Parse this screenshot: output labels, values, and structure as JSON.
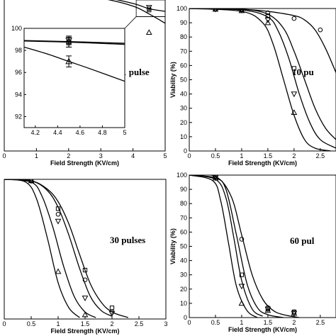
{
  "chart_data": [
    {
      "type": "line",
      "annotation": "1 pulse",
      "xlabel": "Field Strength (KV/cm)",
      "ylabel": "",
      "xlim": [
        0,
        5
      ],
      "ylim": [
        88,
        100
      ],
      "xticks": [
        "0",
        "1",
        "2",
        "3",
        "4",
        "5"
      ],
      "yticks": [],
      "curves": [
        {
          "x": [
            0,
            1,
            2,
            3,
            4,
            4.5,
            5
          ],
          "y": [
            100,
            100,
            99.9,
            99.7,
            99.2,
            98.8,
            98.6
          ]
        },
        {
          "x": [
            0,
            1,
            2,
            3,
            4,
            4.5,
            5
          ],
          "y": [
            100,
            100,
            99.9,
            99.6,
            99.0,
            98.4,
            97.7
          ]
        }
      ],
      "markers": [
        {
          "symbol": "circle",
          "x": [
            0,
            0.5,
            1,
            1.5,
            2,
            4.5
          ],
          "y": [
            100,
            100,
            100,
            100,
            100,
            98.8
          ]
        },
        {
          "symbol": "square",
          "x": [
            0,
            0.5,
            1,
            1.5,
            2,
            4.5
          ],
          "y": [
            100,
            100,
            100,
            100,
            100,
            98.7
          ]
        },
        {
          "symbol": "triangle-down",
          "x": [
            0,
            0.5,
            1,
            1.5,
            2,
            4.5
          ],
          "y": [
            100,
            100,
            100,
            100,
            100,
            98.9
          ]
        },
        {
          "symbol": "triangle-up",
          "x": [
            0,
            0.5,
            1,
            1.5,
            2,
            4.5
          ],
          "y": [
            100,
            100,
            100,
            100,
            100,
            97.0
          ]
        }
      ],
      "inset": {
        "xlim": [
          4.1,
          5
        ],
        "ylim": [
          91,
          100
        ],
        "xticks": [
          "4.2",
          "4.4",
          "4.6",
          "4.8",
          "5"
        ],
        "yticks": [
          "92",
          "94",
          "96",
          "98",
          "100"
        ],
        "curves": [
          {
            "x": [
              4.1,
              4.5,
              5
            ],
            "y": [
              98.9,
              98.8,
              98.65
            ]
          },
          {
            "x": [
              4.1,
              4.5,
              5
            ],
            "y": [
              98.85,
              98.75,
              98.55
            ]
          },
          {
            "x": [
              4.1,
              4.3,
              4.5,
              4.7,
              5
            ],
            "y": [
              98.3,
              97.7,
              97.0,
              96.3,
              95.2
            ]
          }
        ],
        "markers": [
          {
            "symbol": "circle",
            "x": [
              4.5
            ],
            "y": [
              98.8
            ],
            "err": [
              0.5
            ]
          },
          {
            "symbol": "square",
            "x": [
              4.5
            ],
            "y": [
              98.7
            ],
            "err": [
              0.4
            ]
          },
          {
            "symbol": "triangle-down",
            "x": [
              4.5
            ],
            "y": [
              98.9
            ],
            "err": [
              0.3
            ]
          },
          {
            "symbol": "triangle-up",
            "x": [
              4.5
            ],
            "y": [
              97.0
            ],
            "err": [
              0.5
            ]
          }
        ]
      }
    },
    {
      "type": "line",
      "annotation": "10 pu",
      "xlabel": "Field Strength (KV/cm)",
      "ylabel": "Viability (%)",
      "xlim": [
        0,
        2.8
      ],
      "ylim": [
        0,
        100
      ],
      "xticks": [
        "0",
        "0.5",
        "1",
        "1.5",
        "2",
        "2.5"
      ],
      "yticks": [
        "0",
        "10",
        "20",
        "30",
        "40",
        "50",
        "60",
        "70",
        "80",
        "90",
        "100"
      ],
      "curves": [
        {
          "x": [
            0,
            0.5,
            1,
            1.5,
            2,
            2.2,
            2.4,
            2.6,
            2.8
          ],
          "y": [
            100,
            100,
            99.5,
            98,
            95,
            92,
            85,
            72,
            55
          ]
        },
        {
          "x": [
            0,
            1,
            1.5,
            1.8,
            2,
            2.2,
            2.4,
            2.6,
            2.8
          ],
          "y": [
            100,
            99.5,
            96,
            86,
            70,
            50,
            30,
            16,
            8
          ]
        },
        {
          "x": [
            0,
            1,
            1.5,
            1.7,
            1.9,
            2.1,
            2.3,
            2.5,
            2.8
          ],
          "y": [
            100,
            99,
            94,
            84,
            65,
            40,
            20,
            8,
            2
          ]
        },
        {
          "x": [
            0,
            1,
            1.4,
            1.6,
            1.8,
            2.0,
            2.2,
            2.4,
            2.7
          ],
          "y": [
            100,
            98,
            90,
            75,
            50,
            25,
            8,
            2,
            0
          ]
        }
      ],
      "markers": [
        {
          "symbol": "circle",
          "x": [
            0.5,
            1,
            1.5,
            2,
            2.5
          ],
          "y": [
            99.5,
            99,
            97,
            93,
            85
          ]
        },
        {
          "symbol": "square",
          "x": [
            0.5,
            1,
            1.5,
            2
          ],
          "y": [
            99.5,
            99,
            95,
            58
          ]
        },
        {
          "symbol": "triangle-down",
          "x": [
            0.5,
            1,
            1.5,
            2
          ],
          "y": [
            99.5,
            99,
            92,
            40
          ]
        },
        {
          "symbol": "triangle-up",
          "x": [
            0.5,
            1,
            1.5,
            2
          ],
          "y": [
            99.5,
            98.5,
            90,
            27
          ]
        }
      ]
    },
    {
      "type": "line",
      "annotation": "30 pulses",
      "xlabel": "Field Strength (KV/cm)",
      "ylabel": "",
      "xlim": [
        0,
        3
      ],
      "ylim": [
        0,
        100
      ],
      "xticks": [
        "0",
        "0.5",
        "1",
        "1.5",
        "2",
        "2.5",
        "3"
      ],
      "yticks": [],
      "curves": [
        {
          "x": [
            0,
            0.5,
            0.8,
            1.0,
            1.2,
            1.4,
            1.6,
            1.8,
            2.0,
            2.3
          ],
          "y": [
            100,
            99,
            93,
            84,
            68,
            46,
            25,
            12,
            5,
            1
          ]
        },
        {
          "x": [
            0,
            0.5,
            0.8,
            1.0,
            1.2,
            1.4,
            1.6,
            1.8,
            2.0
          ],
          "y": [
            100,
            99,
            92,
            80,
            60,
            36,
            16,
            6,
            2
          ]
        },
        {
          "x": [
            0,
            0.5,
            0.7,
            0.9,
            1.1,
            1.3,
            1.5,
            1.7
          ],
          "y": [
            100,
            98,
            88,
            66,
            38,
            16,
            5,
            1
          ]
        },
        {
          "x": [
            0,
            0.4,
            0.6,
            0.8,
            1.0,
            1.2,
            1.4
          ],
          "y": [
            100,
            98,
            86,
            58,
            26,
            8,
            1
          ]
        }
      ],
      "markers": [
        {
          "symbol": "circle",
          "x": [
            0.5,
            1,
            1.5,
            2
          ],
          "y": [
            99,
            75,
            28,
            5
          ]
        },
        {
          "symbol": "square",
          "x": [
            0.5,
            1,
            1.5,
            2
          ],
          "y": [
            99,
            79,
            35,
            8
          ]
        },
        {
          "symbol": "triangle-down",
          "x": [
            0.5,
            1,
            1.5,
            2
          ],
          "y": [
            99,
            70,
            15,
            4
          ]
        },
        {
          "symbol": "triangle-up",
          "x": [
            0.5,
            1,
            1.5
          ],
          "y": [
            99,
            34,
            3
          ]
        }
      ]
    },
    {
      "type": "line",
      "annotation": "60 pul",
      "xlabel": "Field Strength (KV/cm)",
      "ylabel": "Viability (%)",
      "xlim": [
        0,
        2.8
      ],
      "ylim": [
        0,
        100
      ],
      "xticks": [
        "0",
        "0.5",
        "1",
        "1.5",
        "2",
        "2.5"
      ],
      "yticks": [
        "0",
        "10",
        "20",
        "30",
        "40",
        "50",
        "60",
        "70",
        "80",
        "90",
        "100"
      ],
      "curves": [
        {
          "x": [
            0,
            0.5,
            0.8,
            1.0,
            1.2,
            1.4,
            1.6,
            1.8,
            2.1
          ],
          "y": [
            100,
            99,
            85,
            58,
            30,
            13,
            5,
            2,
            0
          ]
        },
        {
          "x": [
            0,
            0.5,
            0.7,
            0.9,
            1.1,
            1.3,
            1.5,
            1.8
          ],
          "y": [
            100,
            98,
            90,
            58,
            24,
            7,
            2,
            0
          ]
        },
        {
          "x": [
            0,
            0.5,
            0.7,
            0.85,
            1.0,
            1.2,
            1.4
          ],
          "y": [
            100,
            97,
            84,
            56,
            26,
            6,
            1
          ]
        },
        {
          "x": [
            0,
            0.45,
            0.6,
            0.75,
            0.9,
            1.1,
            1.3
          ],
          "y": [
            100,
            96,
            82,
            52,
            22,
            5,
            0
          ]
        }
      ],
      "markers": [
        {
          "symbol": "circle",
          "x": [
            0.5,
            1,
            1.5,
            2
          ],
          "y": [
            99,
            55,
            7,
            4
          ]
        },
        {
          "symbol": "square",
          "x": [
            0.5,
            1,
            1.5,
            2
          ],
          "y": [
            99,
            30,
            6,
            4
          ]
        },
        {
          "symbol": "triangle-down",
          "x": [
            0.5,
            1,
            1.5,
            2
          ],
          "y": [
            98,
            22,
            6,
            3
          ]
        },
        {
          "symbol": "triangle-up",
          "x": [
            0.5,
            1,
            1.5,
            2
          ],
          "y": [
            98,
            10,
            5,
            3
          ]
        }
      ]
    }
  ]
}
